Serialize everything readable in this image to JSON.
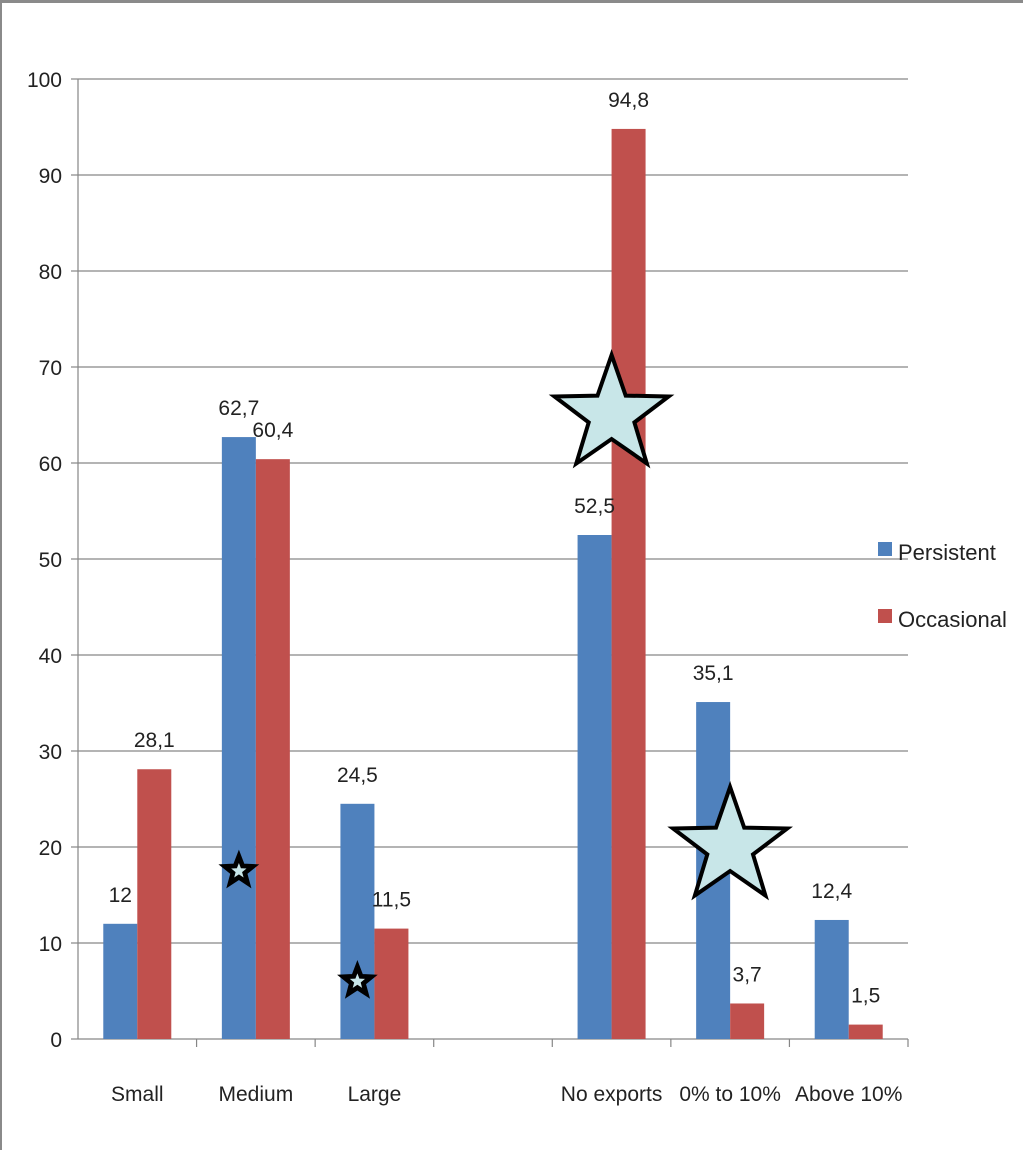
{
  "chart_data": {
    "type": "bar",
    "categories": [
      "Small",
      "Medium",
      "Large",
      "",
      "No exports",
      "0% to 10%",
      "Above 10%"
    ],
    "series": [
      {
        "name": "Persistent",
        "color": "#4f81bd",
        "values": [
          12,
          62.7,
          24.5,
          null,
          52.5,
          35.1,
          12.4
        ],
        "labels": [
          "12",
          "62,7",
          "24,5",
          "",
          "52,5",
          "35,1",
          "12,4"
        ]
      },
      {
        "name": "Occasional",
        "color": "#c0504d",
        "values": [
          28.1,
          60.4,
          11.5,
          null,
          94.8,
          3.7,
          1.5
        ],
        "labels": [
          "28,1",
          "60,4",
          "11,5",
          "",
          "94,8",
          "3,7",
          "1,5"
        ]
      }
    ],
    "ylim": [
      0,
      100
    ],
    "yticks": [
      "0",
      "10",
      "20",
      "30",
      "40",
      "50",
      "60",
      "70",
      "80",
      "90",
      "100"
    ],
    "grid": true,
    "legend_position": "right",
    "annotations": [
      {
        "shape": "star",
        "style": "black-small",
        "category": "Medium",
        "y": 17.5
      },
      {
        "shape": "star",
        "style": "black-small",
        "category": "Large",
        "y": 6
      },
      {
        "shape": "star",
        "style": "light-cyan-large",
        "category": "No exports",
        "y": 65
      },
      {
        "shape": "star",
        "style": "light-cyan-large",
        "category": "0% to 10%",
        "y": 20
      }
    ]
  }
}
